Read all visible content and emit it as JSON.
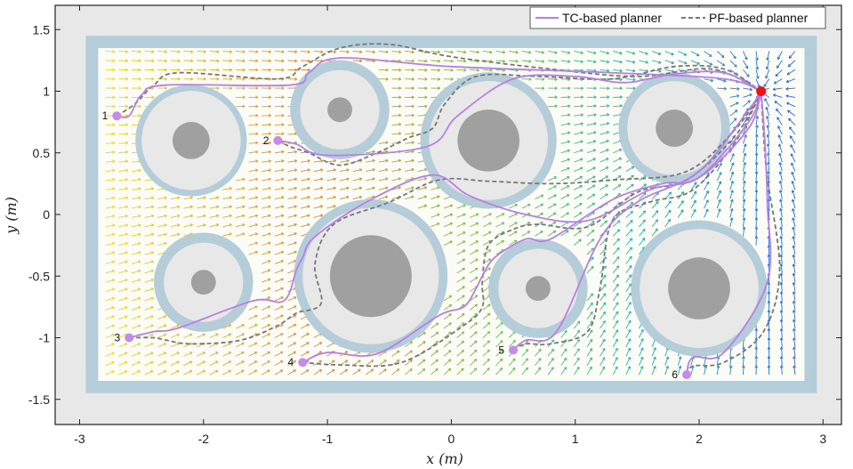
{
  "chart_data": {
    "type": "line",
    "title": "",
    "xlabel": "x (m)",
    "ylabel": "y (m)",
    "xlim": [
      -3.25,
      3.25
    ],
    "ylim": [
      -1.7,
      1.7
    ],
    "xticks": [
      -3,
      -2,
      -1,
      0,
      1,
      2,
      3
    ],
    "yticks": [
      -1.5,
      -1,
      -0.5,
      0,
      0.5,
      1,
      1.5
    ],
    "xtick_labels": [
      "-3",
      "-2",
      "-1",
      "0",
      "1",
      "2",
      "3"
    ],
    "ytick_labels": [
      "-1.5",
      "-1",
      "-0.5",
      "0",
      "0.5",
      "1",
      "1.5"
    ],
    "arena": {
      "x": [
        -2.95,
        2.95
      ],
      "y": [
        -1.45,
        1.45
      ],
      "wall_thickness": 0.1
    },
    "goal": {
      "x": 2.5,
      "y": 1.0
    },
    "obstacles": [
      {
        "x": -2.1,
        "y": 0.6,
        "r_core": 0.15,
        "r_body": 0.4,
        "r_margin": 0.45
      },
      {
        "x": -0.9,
        "y": 0.85,
        "r_core": 0.1,
        "r_body": 0.32,
        "r_margin": 0.4
      },
      {
        "x": 0.3,
        "y": 0.6,
        "r_core": 0.25,
        "r_body": 0.48,
        "r_margin": 0.55
      },
      {
        "x": 1.8,
        "y": 0.7,
        "r_core": 0.15,
        "r_body": 0.38,
        "r_margin": 0.45
      },
      {
        "x": -2.0,
        "y": -0.55,
        "r_core": 0.1,
        "r_body": 0.32,
        "r_margin": 0.4
      },
      {
        "x": -0.65,
        "y": -0.5,
        "r_core": 0.33,
        "r_body": 0.55,
        "r_margin": 0.62
      },
      {
        "x": 0.7,
        "y": -0.6,
        "r_core": 0.1,
        "r_body": 0.32,
        "r_margin": 0.4
      },
      {
        "x": 2.0,
        "y": -0.6,
        "r_core": 0.25,
        "r_body": 0.48,
        "r_margin": 0.55
      }
    ],
    "starts": [
      {
        "label": "1",
        "x": -2.7,
        "y": 0.8
      },
      {
        "label": "2",
        "x": -1.4,
        "y": 0.6
      },
      {
        "label": "3",
        "x": -2.6,
        "y": -1.0
      },
      {
        "label": "4",
        "x": -1.2,
        "y": -1.2
      },
      {
        "label": "5",
        "x": 0.5,
        "y": -1.1
      },
      {
        "label": "6",
        "x": 1.9,
        "y": -1.3
      }
    ],
    "series": [
      {
        "name": "TC-based planner",
        "color": "#b87fe6",
        "style": "solid",
        "paths": [
          [
            [
              -2.7,
              0.8
            ],
            [
              -2.6,
              0.8
            ],
            [
              -2.5,
              0.97
            ],
            [
              -2.3,
              1.05
            ],
            [
              -1.3,
              1.05
            ],
            [
              -1.15,
              1.15
            ],
            [
              -0.9,
              1.27
            ],
            [
              0,
              1.2
            ],
            [
              1.3,
              1.15
            ],
            [
              2.2,
              1.1
            ],
            [
              2.5,
              1.0
            ]
          ],
          [
            [
              -1.4,
              0.6
            ],
            [
              -1.25,
              0.57
            ],
            [
              -1.0,
              0.48
            ],
            [
              -0.2,
              0.55
            ],
            [
              0.05,
              0.8
            ],
            [
              0.5,
              1.1
            ],
            [
              1.0,
              1.12
            ],
            [
              1.4,
              1.07
            ],
            [
              1.8,
              1.14
            ],
            [
              2.2,
              1.15
            ],
            [
              2.5,
              1.0
            ]
          ],
          [
            [
              -2.6,
              -1.0
            ],
            [
              -2.4,
              -0.95
            ],
            [
              -2.2,
              -0.92
            ],
            [
              -1.6,
              -0.7
            ],
            [
              -1.35,
              -0.7
            ],
            [
              -1.25,
              -0.45
            ],
            [
              -1.2,
              -0.35
            ],
            [
              -1.1,
              -0.18
            ],
            [
              -0.65,
              0.12
            ],
            [
              -0.15,
              0.32
            ],
            [
              0.15,
              0.15
            ],
            [
              0.6,
              0.0
            ],
            [
              1.1,
              -0.05
            ],
            [
              1.6,
              0.2
            ],
            [
              2.0,
              0.3
            ],
            [
              2.4,
              0.7
            ],
            [
              2.5,
              1.0
            ]
          ],
          [
            [
              -1.2,
              -1.2
            ],
            [
              -1.0,
              -1.12
            ],
            [
              -0.6,
              -1.13
            ],
            [
              -0.1,
              -0.82
            ],
            [
              0.1,
              -0.75
            ],
            [
              0.2,
              -0.6
            ],
            [
              0.25,
              -0.5
            ],
            [
              0.35,
              -0.35
            ],
            [
              0.6,
              -0.2
            ],
            [
              0.8,
              -0.2
            ],
            [
              1.3,
              0.12
            ],
            [
              1.7,
              0.25
            ],
            [
              2.0,
              0.3
            ],
            [
              2.4,
              0.75
            ],
            [
              2.5,
              1.0
            ]
          ],
          [
            [
              0.5,
              -1.1
            ],
            [
              0.6,
              -1.02
            ],
            [
              0.85,
              -0.95
            ],
            [
              1.2,
              -0.2
            ],
            [
              1.5,
              0.1
            ],
            [
              2.0,
              0.35
            ],
            [
              2.4,
              0.85
            ],
            [
              2.5,
              1.0
            ]
          ],
          [
            [
              1.9,
              -1.3
            ],
            [
              1.95,
              -1.16
            ],
            [
              2.2,
              -1.12
            ],
            [
              2.55,
              -0.55
            ],
            [
              2.55,
              0.1
            ],
            [
              2.53,
              0.6
            ],
            [
              2.5,
              1.0
            ]
          ]
        ]
      },
      {
        "name": "PF-based planner",
        "color": "#777777",
        "style": "dashed",
        "paths": [
          [
            [
              -2.7,
              0.8
            ],
            [
              -2.55,
              0.9
            ],
            [
              -2.4,
              1.05
            ],
            [
              -2.2,
              1.15
            ],
            [
              -1.4,
              1.1
            ],
            [
              -1.2,
              1.2
            ],
            [
              -0.9,
              1.35
            ],
            [
              -0.5,
              1.38
            ],
            [
              0,
              1.28
            ],
            [
              0.8,
              1.18
            ],
            [
              1.5,
              1.12
            ],
            [
              2.1,
              1.18
            ],
            [
              2.5,
              1.0
            ]
          ],
          [
            [
              -1.4,
              0.6
            ],
            [
              -1.3,
              0.55
            ],
            [
              -1.15,
              0.5
            ],
            [
              -0.9,
              0.4
            ],
            [
              -0.6,
              0.5
            ],
            [
              -0.35,
              0.62
            ],
            [
              -0.15,
              0.7
            ],
            [
              -0.05,
              0.9
            ],
            [
              0.2,
              1.12
            ],
            [
              0.7,
              1.12
            ],
            [
              1.3,
              1.1
            ],
            [
              1.8,
              1.2
            ],
            [
              2.2,
              1.18
            ],
            [
              2.5,
              1.0
            ]
          ],
          [
            [
              -2.6,
              -1.0
            ],
            [
              -2.4,
              -1.0
            ],
            [
              -2.3,
              -1.02
            ],
            [
              -2.1,
              -1.05
            ],
            [
              -1.7,
              -1.02
            ],
            [
              -1.4,
              -0.9
            ],
            [
              -1.25,
              -0.8
            ],
            [
              -1.05,
              -0.72
            ],
            [
              -1.1,
              -0.4
            ],
            [
              -0.95,
              -0.08
            ],
            [
              -0.5,
              0.1
            ],
            [
              -0.1,
              0.28
            ],
            [
              0.3,
              0.27
            ],
            [
              0.8,
              0.25
            ],
            [
              1.3,
              0.28
            ],
            [
              1.9,
              0.35
            ],
            [
              2.3,
              0.7
            ],
            [
              2.5,
              1.0
            ]
          ],
          [
            [
              -1.2,
              -1.2
            ],
            [
              -0.9,
              -1.22
            ],
            [
              -0.4,
              -1.2
            ],
            [
              0.1,
              -0.9
            ],
            [
              0.25,
              -0.75
            ],
            [
              0.25,
              -0.55
            ],
            [
              0.3,
              -0.25
            ],
            [
              0.5,
              -0.12
            ],
            [
              0.7,
              -0.08
            ],
            [
              1.1,
              -0.1
            ],
            [
              1.5,
              0.18
            ],
            [
              1.9,
              0.28
            ],
            [
              2.3,
              0.65
            ],
            [
              2.5,
              1.0
            ]
          ],
          [
            [
              0.5,
              -1.1
            ],
            [
              0.6,
              -1.05
            ],
            [
              0.8,
              -1.05
            ],
            [
              1.1,
              -0.95
            ],
            [
              1.2,
              -0.6
            ],
            [
              1.3,
              -0.05
            ],
            [
              1.6,
              0.1
            ],
            [
              1.95,
              0.2
            ],
            [
              2.3,
              0.6
            ],
            [
              2.5,
              1.0
            ]
          ],
          [
            [
              1.9,
              -1.3
            ],
            [
              1.95,
              -1.23
            ],
            [
              2.2,
              -1.2
            ],
            [
              2.52,
              -0.95
            ],
            [
              2.65,
              -0.45
            ],
            [
              2.55,
              0.3
            ],
            [
              2.52,
              0.65
            ],
            [
              2.5,
              1.0
            ]
          ]
        ]
      }
    ],
    "legend": {
      "placement": "top-right",
      "entries": [
        "TC-based planner",
        "PF-based planner"
      ]
    },
    "colors": {
      "arena_bg": "#e8e8e8",
      "wall": "#b5ccd9",
      "obstacle_margin": "#b5ccd9",
      "obstacle_body": "#e8e8e8",
      "obstacle_core": "#a0a0a0",
      "goal": "#ee1111",
      "start": "#c48ce8"
    }
  }
}
